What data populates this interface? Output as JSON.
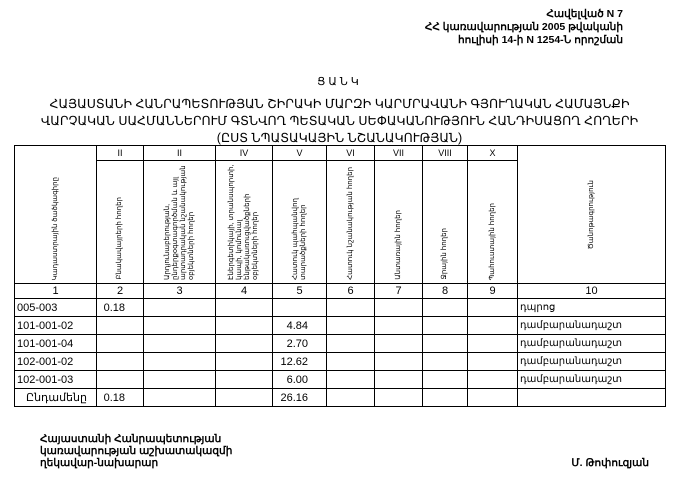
{
  "header": {
    "lines": [
      "Հավելված N 7",
      "ՀՀ կառավարության 2005 թվականի",
      "հուլիսի 14-ի N 1254-Ն որոշման"
    ]
  },
  "title": "ՑԱՆԿ",
  "subtitle": [
    "ՀԱՅԱՍՏԱՆԻ ՀԱՆՐԱՊԵՏՈՒԹՅԱՆ ՇԻՐԱԿԻ ՄԱՐԶԻ ԿԱՐՄՐԱՎԱՆԻ ԳՅՈՒՂԱԿԱՆ ՀԱՄԱՅՆՔԻ",
    "ՎԱՐՉԱԿԱՆ ՍԱՀՄԱՆՆԵՐՈՒՄ ԳՏՆՎՈՂ ՊԵՏԱԿԱՆ ՍԵՓԱԿԱՆՈՒԹՅՈՒՆ ՀԱՆԴԻՍԱՑՈՂ ՀՈՂԵՐԻ",
    "(ԸՍՏ ՆՊԱՏԱԿԱՅԻՆ ՆՇԱՆԱԿՈՒԹՅԱՆ)"
  ],
  "table": {
    "roman": [
      "II",
      "II",
      "IV",
      "V",
      "VI",
      "VII",
      "VIII",
      "X"
    ],
    "columns": [
      "Կադաստրային ծածկագիրը",
      "Բնակավայրերի հողեր",
      "Արդյունաբերության, ընդերքօգտագործման և այլ արտադրական նշանակության օբյեկտների հողեր",
      "Էներգետիկայի, տրանսպորտի, կապի, կոմունալ ենթակառուցվածքների օբյեկտների հողեր",
      "Հատուկ պահպանվող տարածքների հողեր",
      "Հատուկ նշանակության հողեր",
      "Անտառային հողեր",
      "Ջրային հողեր",
      "Պահուստային հողեր",
      "Ծանոթագրություն"
    ],
    "numbers": [
      "1",
      "2",
      "3",
      "4",
      "5",
      "6",
      "7",
      "8",
      "9",
      "10"
    ],
    "rows": [
      [
        "005-003",
        "0.18",
        "",
        "",
        "",
        "",
        "",
        "",
        "",
        "դպրոց"
      ],
      [
        "101-001-02",
        "",
        "",
        "",
        "4.84",
        "",
        "",
        "",
        "",
        "դամբարանադաշտ"
      ],
      [
        "101-001-04",
        "",
        "",
        "",
        "2.70",
        "",
        "",
        "",
        "",
        "դամբարանադաշտ"
      ],
      [
        "102-001-02",
        "",
        "",
        "",
        "12.62",
        "",
        "",
        "",
        "",
        "դամբարանադաշտ"
      ],
      [
        "102-001-03",
        "",
        "",
        "",
        "6.00",
        "",
        "",
        "",
        "",
        "դամբարանադաշտ"
      ]
    ],
    "total": [
      "Ընդամենը",
      "0.18",
      "",
      "",
      "26.16",
      "",
      "",
      "",
      "",
      ""
    ]
  },
  "footer": {
    "lines": [
      "Հայաստանի Հանրապետության",
      "կառավարության աշխատակազմի",
      "ղեկավար-նախարար"
    ],
    "signatory": "Մ. Թոփուզյան"
  }
}
